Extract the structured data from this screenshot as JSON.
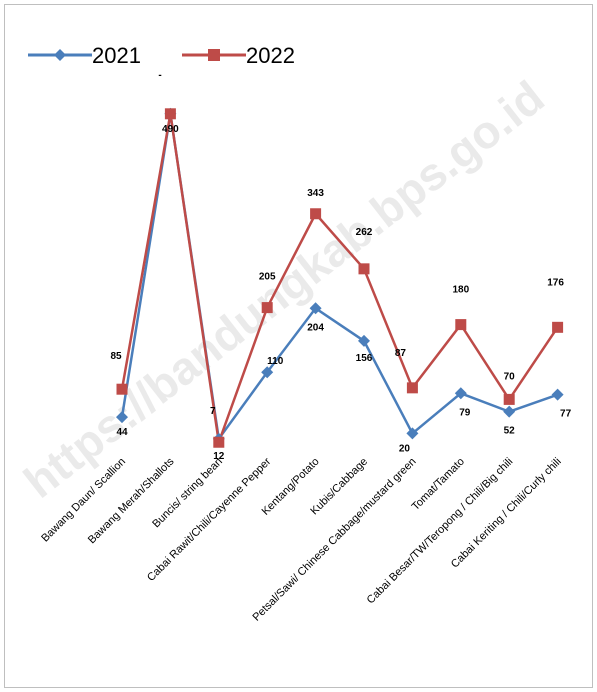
{
  "watermark": "https://bandungkab.bps.go.id",
  "chart_data": {
    "type": "line",
    "title": "",
    "xlabel": "",
    "ylabel": "",
    "ylim": [
      0,
      520
    ],
    "grid": false,
    "legend_position": "top-left",
    "categories": [
      "Bawang Daun/ Scallion",
      "Bawang Merah/Shallots",
      "Buncis/ string bean",
      "Cabai Rawit/Chili/Cayenne Pepper",
      "Kentang/Potato",
      "Kubis/Cabbage",
      "Petsal/Sawi/ Chinese Cabbage/mustard green",
      "Tomat/Tamato",
      "Cabai Besar/TW/Teropong / Chili/Big chili",
      "Cabai Keriting / Chili/Curly chili"
    ],
    "series": [
      {
        "name": "2021",
        "color": "#4a7ebb",
        "marker": "diamond",
        "values": [
          44,
          490,
          12,
          110,
          204,
          156,
          20,
          79,
          52,
          77
        ],
        "labels": [
          "44",
          "",
          "12",
          "110",
          "204",
          "156",
          "20",
          "79",
          "52",
          "77"
        ]
      },
      {
        "name": "2022",
        "color": "#be4b48",
        "marker": "square",
        "values": [
          85,
          490,
          7,
          205,
          343,
          262,
          87,
          180,
          70,
          176
        ],
        "labels": [
          "85",
          "490",
          "7",
          "205",
          "343",
          "262",
          "87",
          "180",
          "70",
          "176"
        ]
      }
    ],
    "annotations": [
      "-"
    ]
  }
}
